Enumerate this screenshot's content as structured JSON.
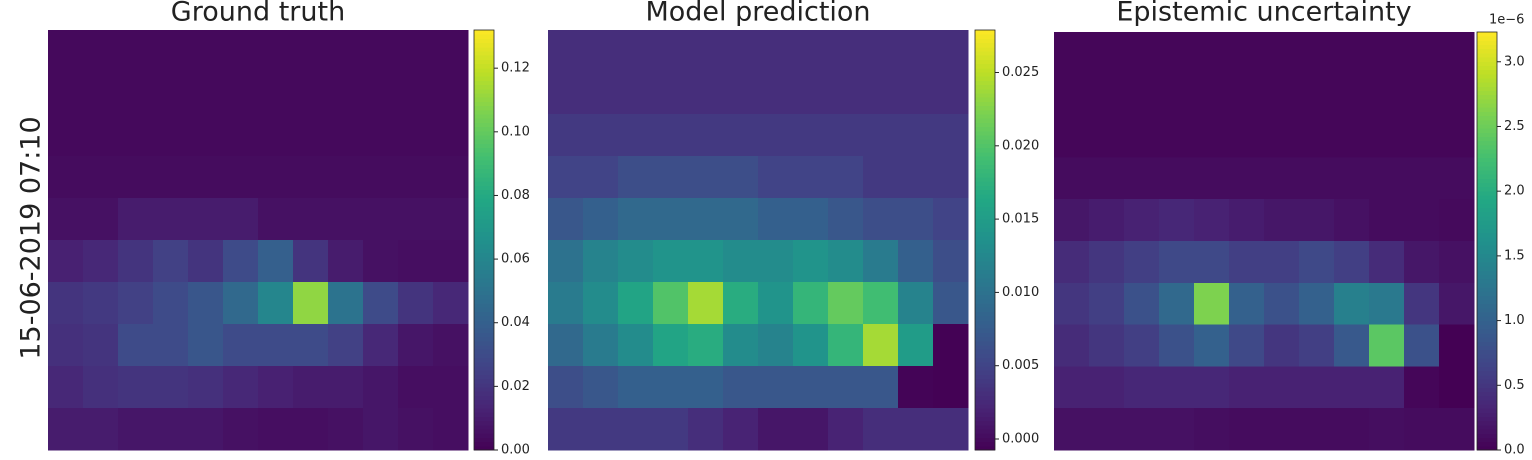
{
  "row_label": "15-06-2019 07:10",
  "chart_data": [
    {
      "type": "heatmap",
      "title": "Ground truth",
      "colormap": "viridis",
      "zlim": [
        0,
        0.132
      ],
      "zticks": [
        {
          "value": 0,
          "label": "0.00"
        },
        {
          "value": 0.02,
          "label": "0.02"
        },
        {
          "value": 0.04,
          "label": "0.04"
        },
        {
          "value": 0.06,
          "label": "0.06"
        },
        {
          "value": 0.08,
          "label": "0.08"
        },
        {
          "value": 0.1,
          "label": "0.10"
        },
        {
          "value": 0.12,
          "label": "0.12"
        }
      ],
      "z": [
        [
          0.003,
          0.003,
          0.003,
          0.003,
          0.003,
          0.003,
          0.003,
          0.003,
          0.003,
          0.003,
          0.003,
          0.003
        ],
        [
          0.003,
          0.003,
          0.003,
          0.003,
          0.003,
          0.003,
          0.003,
          0.003,
          0.003,
          0.003,
          0.003,
          0.003
        ],
        [
          0.003,
          0.003,
          0.003,
          0.003,
          0.003,
          0.003,
          0.003,
          0.003,
          0.003,
          0.003,
          0.003,
          0.003
        ],
        [
          0.004,
          0.004,
          0.004,
          0.004,
          0.004,
          0.004,
          0.004,
          0.004,
          0.004,
          0.004,
          0.004,
          0.004
        ],
        [
          0.006,
          0.006,
          0.01,
          0.01,
          0.01,
          0.01,
          0.006,
          0.006,
          0.006,
          0.006,
          0.006,
          0.006
        ],
        [
          0.012,
          0.015,
          0.02,
          0.025,
          0.02,
          0.03,
          0.04,
          0.02,
          0.01,
          0.006,
          0.005,
          0.005
        ],
        [
          0.02,
          0.022,
          0.025,
          0.03,
          0.035,
          0.045,
          0.06,
          0.11,
          0.05,
          0.03,
          0.02,
          0.015
        ],
        [
          0.018,
          0.02,
          0.03,
          0.03,
          0.035,
          0.03,
          0.03,
          0.03,
          0.025,
          0.015,
          0.008,
          0.006
        ],
        [
          0.015,
          0.018,
          0.02,
          0.02,
          0.018,
          0.015,
          0.012,
          0.01,
          0.01,
          0.008,
          0.005,
          0.005
        ],
        [
          0.01,
          0.01,
          0.008,
          0.008,
          0.008,
          0.006,
          0.005,
          0.005,
          0.006,
          0.008,
          0.006,
          0.005
        ]
      ]
    },
    {
      "type": "heatmap",
      "title": "Model prediction",
      "colormap": "viridis",
      "zlim": [
        -0.00075,
        0.0279
      ],
      "zticks": [
        {
          "value": 0,
          "label": "0.000"
        },
        0.005,
        {
          "value": 0.01,
          "label": "0.010"
        },
        0.015,
        {
          "value": 0.02,
          "label": "0.020"
        },
        0.025
      ],
      "z": [
        [
          0.003,
          0.003,
          0.003,
          0.003,
          0.003,
          0.003,
          0.003,
          0.003,
          0.003,
          0.003,
          0.003,
          0.003
        ],
        [
          0.003,
          0.003,
          0.003,
          0.003,
          0.003,
          0.003,
          0.003,
          0.003,
          0.003,
          0.003,
          0.003,
          0.003
        ],
        [
          0.004,
          0.004,
          0.004,
          0.004,
          0.004,
          0.004,
          0.004,
          0.004,
          0.004,
          0.004,
          0.004,
          0.004
        ],
        [
          0.005,
          0.005,
          0.006,
          0.006,
          0.006,
          0.006,
          0.005,
          0.005,
          0.005,
          0.004,
          0.004,
          0.004
        ],
        [
          0.007,
          0.008,
          0.009,
          0.009,
          0.009,
          0.009,
          0.008,
          0.008,
          0.007,
          0.006,
          0.006,
          0.005
        ],
        [
          0.01,
          0.012,
          0.013,
          0.014,
          0.014,
          0.013,
          0.013,
          0.014,
          0.013,
          0.011,
          0.008,
          0.006
        ],
        [
          0.011,
          0.013,
          0.016,
          0.02,
          0.024,
          0.017,
          0.014,
          0.018,
          0.021,
          0.019,
          0.012,
          0.007
        ],
        [
          0.009,
          0.011,
          0.013,
          0.016,
          0.017,
          0.013,
          0.012,
          0.014,
          0.018,
          0.024,
          0.015,
          -0.0007
        ],
        [
          0.006,
          0.007,
          0.008,
          0.008,
          0.008,
          0.007,
          0.007,
          0.007,
          0.007,
          0.007,
          -0.0005,
          -0.0007
        ],
        [
          0.004,
          0.004,
          0.004,
          0.004,
          0.003,
          0.002,
          0.001,
          0.001,
          0.002,
          0.003,
          0.003,
          0.003
        ]
      ]
    },
    {
      "type": "heatmap",
      "title": "Epistemic uncertainty",
      "colormap": "viridis",
      "colorbar_offset_label": "1e−6",
      "zlim": [
        0,
        3.23
      ],
      "zticks": [
        {
          "value": 0,
          "label": "0.0"
        },
        0.5,
        {
          "value": 1,
          "label": "1.0"
        },
        1.5,
        {
          "value": 2,
          "label": "2.0"
        },
        2.5,
        {
          "value": 3,
          "label": "3.0"
        }
      ],
      "z": [
        [
          0.05,
          0.05,
          0.05,
          0.05,
          0.05,
          0.05,
          0.05,
          0.05,
          0.05,
          0.05,
          0.05,
          0.05
        ],
        [
          0.05,
          0.05,
          0.05,
          0.05,
          0.05,
          0.05,
          0.05,
          0.05,
          0.05,
          0.05,
          0.05,
          0.05
        ],
        [
          0.05,
          0.05,
          0.05,
          0.05,
          0.05,
          0.05,
          0.05,
          0.05,
          0.05,
          0.05,
          0.05,
          0.05
        ],
        [
          0.1,
          0.1,
          0.1,
          0.1,
          0.1,
          0.1,
          0.1,
          0.1,
          0.1,
          0.1,
          0.1,
          0.1
        ],
        [
          0.2,
          0.25,
          0.3,
          0.35,
          0.3,
          0.25,
          0.2,
          0.2,
          0.15,
          0.1,
          0.1,
          0.08
        ],
        [
          0.4,
          0.5,
          0.6,
          0.7,
          0.7,
          0.6,
          0.6,
          0.7,
          0.6,
          0.4,
          0.2,
          0.15
        ],
        [
          0.5,
          0.6,
          0.8,
          1.1,
          2.6,
          1.0,
          0.8,
          1.0,
          1.4,
          1.3,
          0.5,
          0.2
        ],
        [
          0.4,
          0.5,
          0.6,
          0.8,
          1.0,
          0.7,
          0.5,
          0.6,
          0.9,
          2.4,
          0.8,
          0
        ],
        [
          0.3,
          0.3,
          0.35,
          0.35,
          0.35,
          0.3,
          0.3,
          0.3,
          0.3,
          0.3,
          0.05,
          0
        ],
        [
          0.15,
          0.15,
          0.15,
          0.15,
          0.12,
          0.1,
          0.1,
          0.1,
          0.1,
          0.12,
          0.1,
          0.1
        ]
      ]
    }
  ]
}
